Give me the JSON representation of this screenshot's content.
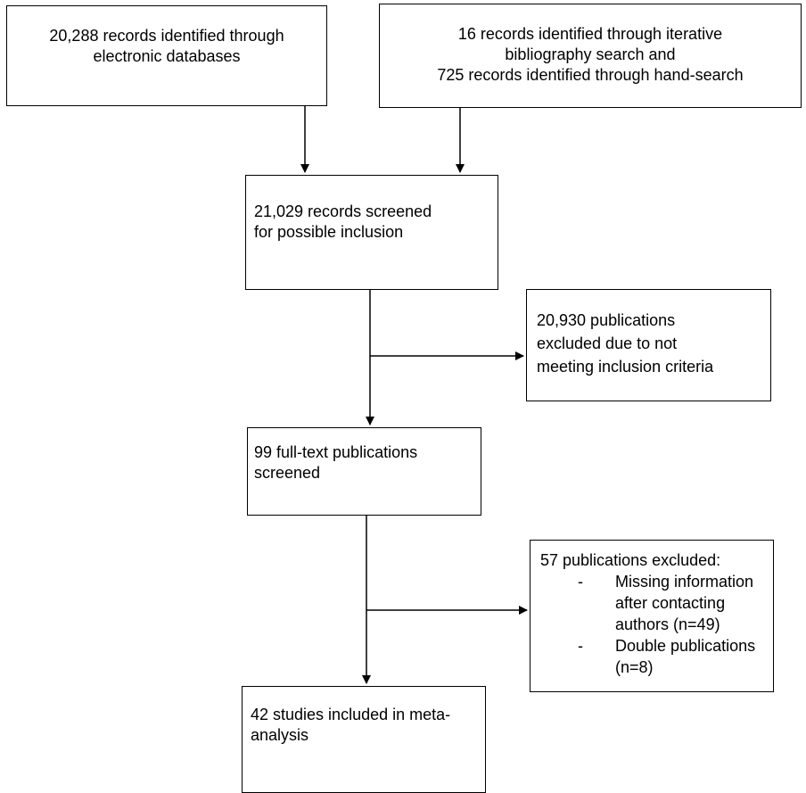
{
  "flow": {
    "databases": {
      "lines": [
        "20,288 records identified through",
        "electronic databases"
      ]
    },
    "other_sources": {
      "lines": [
        "16 records identified through iterative",
        "bibliography search and",
        "725 records identified through hand-search"
      ]
    },
    "screened": {
      "lines": [
        "21,029 records screened",
        "for possible inclusion"
      ]
    },
    "excluded_screening": {
      "lines": [
        "20,930 publications",
        "excluded due to not",
        "meeting inclusion criteria"
      ]
    },
    "fulltext": {
      "lines": [
        "99 full-text publications",
        "screened"
      ]
    },
    "excluded_fulltext": {
      "heading": "57 publications excluded:",
      "reasons": [
        {
          "bullet": "-",
          "lines": [
            "Missing information",
            "after contacting",
            "authors (n=49)"
          ]
        },
        {
          "bullet": "-",
          "lines": [
            "Double publications",
            "(n=8)"
          ]
        }
      ]
    },
    "included": {
      "lines": [
        "42 studies included in meta-",
        "analysis"
      ]
    }
  }
}
